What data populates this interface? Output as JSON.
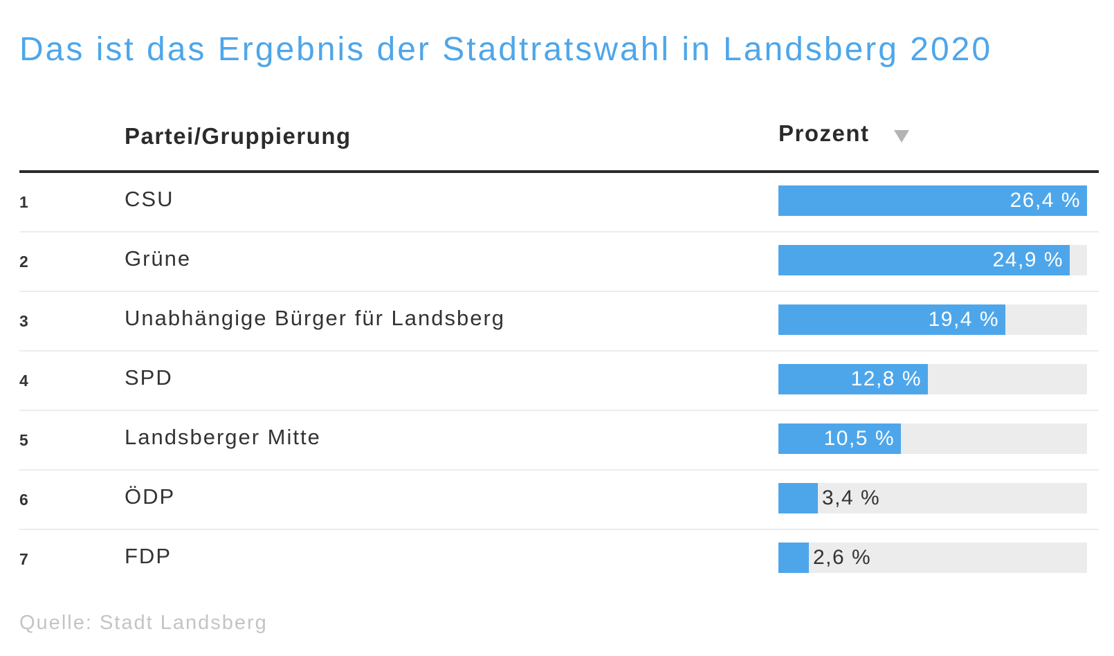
{
  "title": "Das ist das Ergebnis der Stadtratswahl in Landsberg 2020",
  "header": {
    "party": "Partei/Gruppierung",
    "percent": "Prozent",
    "sort_icon": "triangle-down-icon"
  },
  "colors": {
    "accent": "#4ea6ea",
    "track": "#ececec",
    "header_rule": "#2b2b2b",
    "source_text": "#c4c4c4"
  },
  "chart_data": {
    "type": "table",
    "title": "Das ist das Ergebnis der Stadtratswahl in Landsberg 2020",
    "columns": [
      "",
      "Partei/Gruppierung",
      "Prozent"
    ],
    "max_value": 26.4,
    "unit": "%",
    "rows": [
      {
        "rank": "1",
        "party": "CSU",
        "value": 26.4,
        "label": "26,4 %"
      },
      {
        "rank": "2",
        "party": "Grüne",
        "value": 24.9,
        "label": "24,9 %"
      },
      {
        "rank": "3",
        "party": "Unabhängige Bürger für Landsberg",
        "value": 19.4,
        "label": "19,4 %"
      },
      {
        "rank": "4",
        "party": "SPD",
        "value": 12.8,
        "label": "12,8 %"
      },
      {
        "rank": "5",
        "party": "Landsberger Mitte",
        "value": 10.5,
        "label": "10,5 %"
      },
      {
        "rank": "6",
        "party": "ÖDP",
        "value": 3.4,
        "label": "3,4 %"
      },
      {
        "rank": "7",
        "party": "FDP",
        "value": 2.6,
        "label": "2,6 %"
      }
    ]
  },
  "source": "Quelle: Stadt Landsberg"
}
